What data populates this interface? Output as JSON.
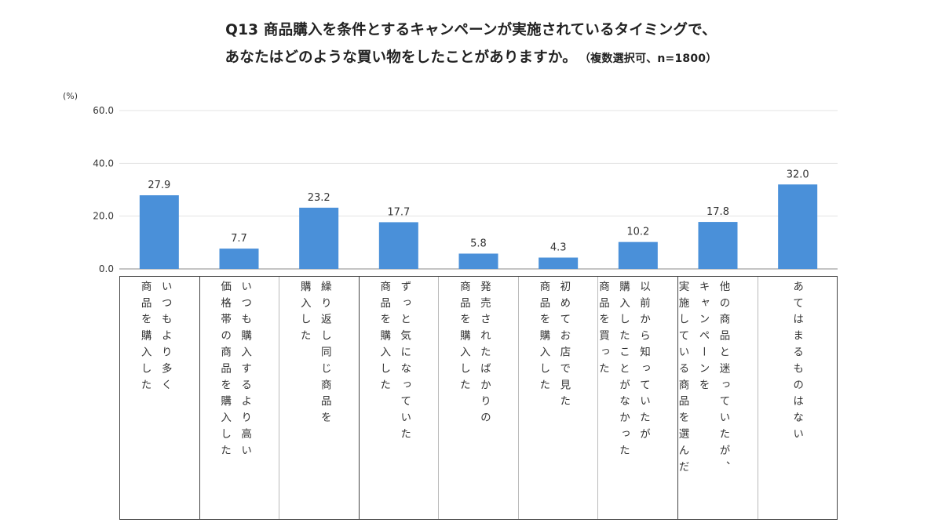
{
  "chart_data": {
    "type": "bar",
    "title_line1": "Q13 商品購入を条件とするキャンペーンが実施されているタイミングで、",
    "title_line2": "あなたはどのような買い物をしたことがありますか。",
    "title_note": "（複数選択可、n=1800）",
    "ylabel": "(%)",
    "ylim": [
      0,
      60
    ],
    "yticks": [
      "0.0",
      "20.0",
      "40.0",
      "60.0"
    ],
    "grid": true,
    "bar_color": "#4a90d9",
    "categories": [
      "いつもより多く\n商品を購入した",
      "いつも購入するより高い\n価格帯の商品を購入した",
      "繰り返し同じ商品を\n購入した",
      "ずっと気になっていた\n商品を購入した",
      "発売されたばかりの\n商品を購入した",
      "初めてお店で見た\n商品を購入した",
      "以前から知っていたが\n購入したことがなかった\n商品を買った",
      "他の商品と迷っていたが、\nキャンペーンを\n実施している商品を選んだ",
      "あてはまるものはない"
    ],
    "values": [
      27.9,
      7.7,
      23.2,
      17.7,
      5.8,
      4.3,
      10.2,
      17.8,
      32.0
    ],
    "value_labels": [
      "27.9",
      "7.7",
      "23.2",
      "17.7",
      "5.8",
      "4.3",
      "10.2",
      "17.8",
      "32.0"
    ]
  }
}
